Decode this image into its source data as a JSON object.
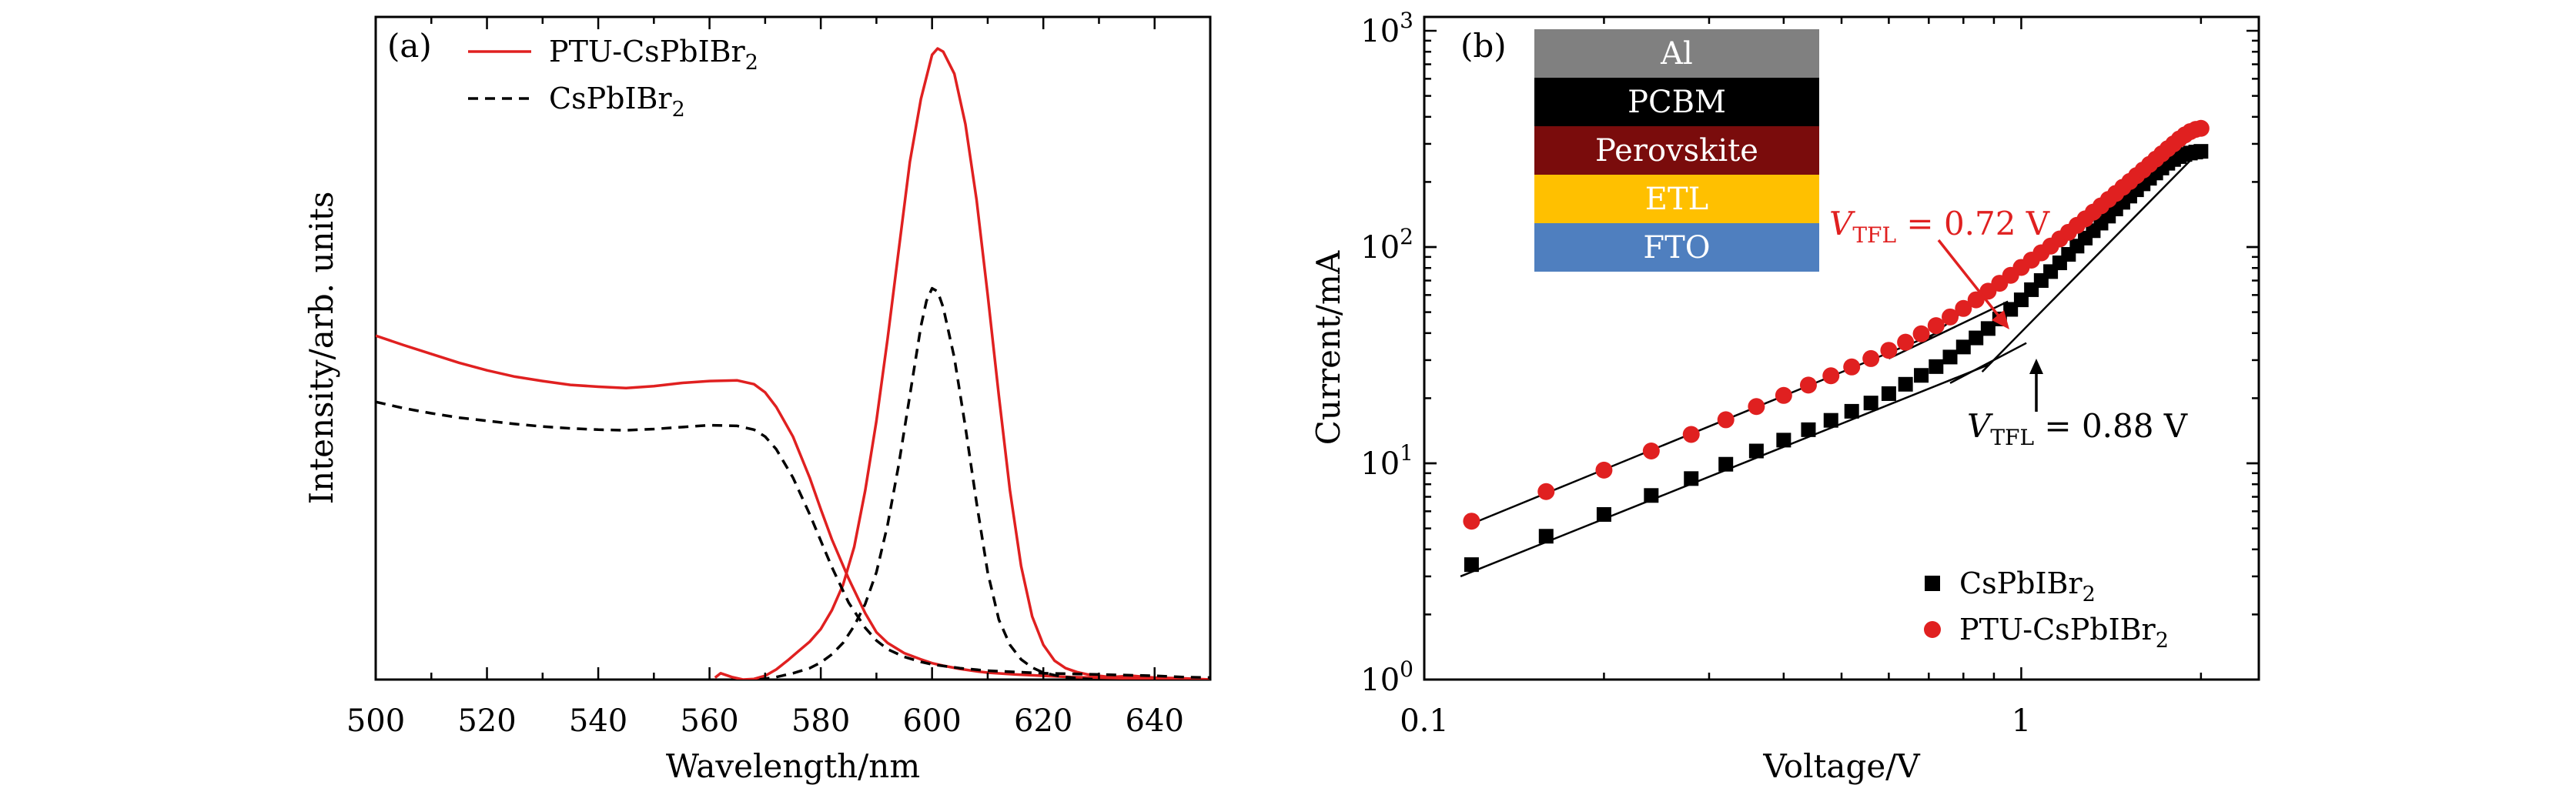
{
  "colors": {
    "red": "#e02020",
    "black": "#000000"
  },
  "chart_data": [
    {
      "panel_label": "(a)",
      "type": "line",
      "xlabel": "Wavelength/nm",
      "ylabel": "Intensity/arb. units",
      "xlim": [
        500,
        650
      ],
      "ylim": [
        0,
        1.0
      ],
      "x_ticks": [
        "500",
        "520",
        "540",
        "560",
        "580",
        "600",
        "620",
        "640"
      ],
      "legend_position": "top-left",
      "series": [
        {
          "name": "PTU-CsPbIBr",
          "name_sub": "2",
          "color": "#e02020",
          "style": "solid",
          "curves": [
            {
              "kind": "absorption",
              "x": [
                500,
                505,
                510,
                515,
                520,
                525,
                530,
                535,
                540,
                545,
                550,
                555,
                560,
                565,
                568,
                570,
                572,
                575,
                578,
                580,
                582,
                585,
                588,
                590,
                592,
                595,
                598,
                600,
                602,
                605,
                608,
                610,
                615,
                620,
                625,
                630,
                635,
                640,
                645,
                650
              ],
              "y": [
                0.545,
                0.53,
                0.516,
                0.502,
                0.49,
                0.48,
                0.473,
                0.467,
                0.464,
                0.462,
                0.465,
                0.47,
                0.473,
                0.474,
                0.468,
                0.455,
                0.432,
                0.385,
                0.32,
                0.27,
                0.222,
                0.16,
                0.105,
                0.075,
                0.058,
                0.042,
                0.032,
                0.026,
                0.022,
                0.017,
                0.013,
                0.011,
                0.008,
                0.006,
                0.004,
                0.003,
                0.002,
                0.001,
                0.001,
                0.0
              ]
            },
            {
              "kind": "emission",
              "x": [
                561,
                562,
                564,
                566,
                568,
                570,
                572,
                574,
                576,
                578,
                580,
                582,
                584,
                586,
                588,
                590,
                592,
                594,
                596,
                598,
                600,
                601,
                602,
                604,
                606,
                608,
                610,
                612,
                614,
                616,
                618,
                620,
                622,
                624,
                626,
                628,
                630,
                632,
                636,
                640,
                645,
                650
              ],
              "y": [
                0.003,
                0.01,
                0.004,
                0.0,
                0.001,
                0.006,
                0.016,
                0.03,
                0.045,
                0.06,
                0.08,
                0.11,
                0.15,
                0.21,
                0.3,
                0.41,
                0.54,
                0.68,
                0.82,
                0.92,
                0.99,
                1.0,
                0.995,
                0.96,
                0.88,
                0.76,
                0.61,
                0.45,
                0.3,
                0.18,
                0.1,
                0.055,
                0.03,
                0.018,
                0.012,
                0.008,
                0.006,
                0.004,
                0.006,
                0.003,
                0.002,
                0.0
              ]
            }
          ]
        },
        {
          "name": "CsPbIBr",
          "name_sub": "2",
          "color": "#000000",
          "style": "dashed",
          "curves": [
            {
              "kind": "absorption",
              "x": [
                500,
                505,
                510,
                515,
                520,
                525,
                530,
                535,
                540,
                545,
                550,
                555,
                560,
                565,
                568,
                570,
                572,
                575,
                578,
                580,
                582,
                585,
                588,
                590,
                592,
                595,
                598,
                600,
                605,
                610,
                615,
                620,
                625,
                630,
                635,
                640,
                645,
                650
              ],
              "y": [
                0.44,
                0.43,
                0.422,
                0.415,
                0.41,
                0.405,
                0.401,
                0.398,
                0.396,
                0.395,
                0.397,
                0.4,
                0.403,
                0.402,
                0.396,
                0.385,
                0.365,
                0.32,
                0.262,
                0.22,
                0.178,
                0.122,
                0.082,
                0.062,
                0.048,
                0.036,
                0.028,
                0.024,
                0.018,
                0.014,
                0.012,
                0.01,
                0.009,
                0.008,
                0.007,
                0.006,
                0.004,
                0.003
              ]
            },
            {
              "kind": "emission",
              "x": [
                569,
                572,
                575,
                578,
                580,
                582,
                584,
                586,
                588,
                590,
                592,
                594,
                596,
                598,
                599,
                600,
                601,
                602,
                604,
                606,
                608,
                610,
                612,
                614,
                616,
                618,
                620,
                622,
                624,
                626,
                628,
                630
              ],
              "y": [
                0.0,
                0.004,
                0.01,
                0.018,
                0.027,
                0.04,
                0.058,
                0.085,
                0.12,
                0.17,
                0.245,
                0.34,
                0.45,
                0.56,
                0.6,
                0.62,
                0.615,
                0.59,
                0.51,
                0.4,
                0.28,
                0.17,
                0.095,
                0.055,
                0.032,
                0.019,
                0.011,
                0.007,
                0.004,
                0.002,
                0.001,
                0.0
              ]
            }
          ]
        }
      ]
    },
    {
      "panel_label": "(b)",
      "type": "scatter",
      "xlabel": "Voltage/V",
      "ylabel": "Current/mA",
      "x_scale": "log",
      "y_scale": "log",
      "xlim": [
        0.1,
        2.5
      ],
      "ylim": [
        1,
        1000
      ],
      "x_ticks": [
        "0.1",
        "1"
      ],
      "y_ticks": [
        {
          "base": "10",
          "exp": "0"
        },
        {
          "base": "10",
          "exp": "1"
        },
        {
          "base": "10",
          "exp": "2"
        },
        {
          "base": "10",
          "exp": "3"
        }
      ],
      "legend_position": "bottom-right",
      "device_stack": [
        "Al",
        "PCBM",
        "Perovskite",
        "ETL",
        "FTO"
      ],
      "device_stack_colors": [
        "#808080",
        "#000000",
        "#7a0c0c",
        "#ffc000",
        "#4f7fbf"
      ],
      "device_stack_text_colors": [
        "#ffffff",
        "#ffffff",
        "#ffffff",
        "#ffffff",
        "#ffffff"
      ],
      "annotations": [
        {
          "prefix": "V",
          "sub": "TFL",
          "text": " = 0.72 V",
          "color": "#e02020",
          "at_x": 0.72
        },
        {
          "prefix": "V",
          "sub": "TFL",
          "text": " = 0.88 V",
          "color": "#000000",
          "at_x": 0.88
        }
      ],
      "series": [
        {
          "name": "CsPbIBr",
          "name_sub": "2",
          "marker": "square",
          "color": "#000000",
          "x": [
            0.12,
            0.16,
            0.2,
            0.24,
            0.28,
            0.32,
            0.36,
            0.4,
            0.44,
            0.48,
            0.52,
            0.56,
            0.6,
            0.64,
            0.68,
            0.72,
            0.76,
            0.8,
            0.84,
            0.88,
            0.92,
            0.96,
            1.0,
            1.04,
            1.08,
            1.12,
            1.16,
            1.2,
            1.24,
            1.28,
            1.32,
            1.36,
            1.4,
            1.44,
            1.48,
            1.52,
            1.56,
            1.6,
            1.64,
            1.68,
            1.72,
            1.76,
            1.8,
            1.84,
            1.88,
            1.92,
            1.96,
            2.0
          ],
          "y": [
            3.4,
            4.6,
            5.8,
            7.1,
            8.5,
            9.9,
            11.4,
            12.8,
            14.3,
            15.8,
            17.4,
            19.0,
            21.0,
            23.2,
            25.5,
            28.0,
            31.0,
            34.5,
            38.0,
            42.0,
            46.5,
            51.5,
            57.0,
            63.5,
            70.0,
            77.0,
            84.5,
            92.5,
            101.0,
            110.0,
            119.0,
            129.0,
            139.0,
            150.0,
            161.0,
            172.0,
            184.0,
            196.0,
            208.0,
            220.0,
            232.0,
            244.0,
            254.0,
            262.0,
            268.0,
            272.0,
            275.0,
            277.0
          ]
        },
        {
          "name": "PTU-CsPbIBr",
          "name_sub": "2",
          "marker": "circle",
          "color": "#e02020",
          "x": [
            0.12,
            0.16,
            0.2,
            0.24,
            0.28,
            0.32,
            0.36,
            0.4,
            0.44,
            0.48,
            0.52,
            0.56,
            0.6,
            0.64,
            0.68,
            0.72,
            0.76,
            0.8,
            0.84,
            0.88,
            0.92,
            0.96,
            1.0,
            1.04,
            1.08,
            1.12,
            1.16,
            1.2,
            1.24,
            1.28,
            1.32,
            1.36,
            1.4,
            1.44,
            1.48,
            1.52,
            1.56,
            1.6,
            1.64,
            1.68,
            1.72,
            1.76,
            1.8,
            1.84,
            1.88,
            1.92,
            1.96,
            2.0
          ],
          "y": [
            5.4,
            7.4,
            9.3,
            11.4,
            13.6,
            15.9,
            18.3,
            20.6,
            23.0,
            25.4,
            27.9,
            30.5,
            33.3,
            36.3,
            39.7,
            43.3,
            47.5,
            52.0,
            57.0,
            62.5,
            68.0,
            74.0,
            80.5,
            87.0,
            94.0,
            101.0,
            109.0,
            117.0,
            126.0,
            135.0,
            145.0,
            155.0,
            166.0,
            177.0,
            189.0,
            201.0,
            214.0,
            227.0,
            241.0,
            255.0,
            270.0,
            285.0,
            300.0,
            316.0,
            330.0,
            342.0,
            350.0,
            354.0
          ]
        }
      ]
    }
  ]
}
